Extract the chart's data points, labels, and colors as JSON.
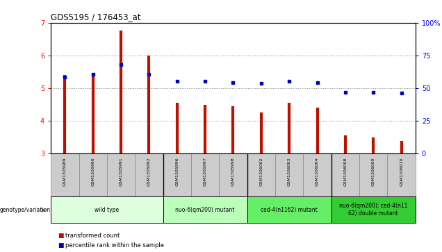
{
  "title": "GDS5195 / 176453_at",
  "samples": [
    "GSM1305989",
    "GSM1305990",
    "GSM1305991",
    "GSM1305992",
    "GSM1305996",
    "GSM1305997",
    "GSM1305998",
    "GSM1306002",
    "GSM1306003",
    "GSM1306004",
    "GSM1306008",
    "GSM1306009",
    "GSM1306010"
  ],
  "bar_values": [
    5.4,
    5.45,
    6.75,
    6.0,
    4.55,
    4.5,
    4.45,
    4.25,
    4.55,
    4.4,
    3.55,
    3.5,
    3.38
  ],
  "bar_base": 3.0,
  "dot_values": [
    5.35,
    5.43,
    5.72,
    5.43,
    5.22,
    5.22,
    5.18,
    5.15,
    5.22,
    5.18,
    4.88,
    4.88,
    4.85
  ],
  "bar_color": "#bb1100",
  "dot_color": "#0000bb",
  "ylim": [
    3.0,
    7.0
  ],
  "yticks_left": [
    3,
    4,
    5,
    6,
    7
  ],
  "yticks_right_labels": [
    "0",
    "25",
    "50",
    "75",
    "100%"
  ],
  "yticks_right_pos": [
    3.0,
    4.0,
    5.0,
    6.0,
    7.0
  ],
  "groups": [
    {
      "label": "wild type",
      "start": 0,
      "end": 3,
      "color": "#ddffdd"
    },
    {
      "label": "nuo-6(qm200) mutant",
      "start": 4,
      "end": 6,
      "color": "#bbffbb"
    },
    {
      "label": "ced-4(n1162) mutant",
      "start": 7,
      "end": 9,
      "color": "#66ee66"
    },
    {
      "label": "nuo-6(qm200); ced-4(n11\n62) double mutant",
      "start": 10,
      "end": 12,
      "color": "#33cc33"
    }
  ],
  "genotype_label": "genotype/variation",
  "legend_items": [
    {
      "label": "transformed count",
      "color": "#bb1100"
    },
    {
      "label": "percentile rank within the sample",
      "color": "#0000bb"
    }
  ],
  "grid_color": "#888888",
  "sample_bg_color": "#cccccc",
  "sample_border_color": "#888888"
}
